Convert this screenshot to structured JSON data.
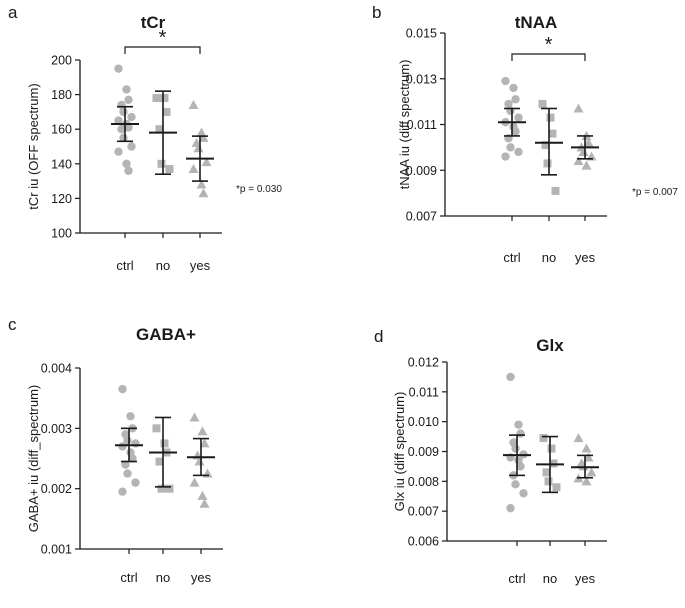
{
  "colors": {
    "ctrl": "#b4b4b4",
    "no": "#b4b4b4",
    "yes": "#b4b4b4",
    "errorbar": "#1a1a1a",
    "axis": "#1a1a1a"
  },
  "chart_data": [
    {
      "type": "scatter",
      "panel": "a",
      "title": "tCr",
      "ylabel": "tCr iu (OFF spectrum)",
      "ylim": [
        100,
        200
      ],
      "yticks": [
        "100",
        "120",
        "140",
        "160",
        "180",
        "200"
      ],
      "categories": [
        "ctrl",
        "no",
        "yes"
      ],
      "markers": [
        "circle",
        "square",
        "triangle"
      ],
      "points": [
        [
          195,
          183,
          177,
          174,
          170,
          167,
          165,
          163,
          161,
          160,
          155,
          150,
          147,
          140,
          136
        ],
        [
          178,
          178,
          170,
          160,
          140,
          137
        ],
        [
          174,
          158,
          155,
          152,
          149,
          141,
          137,
          128,
          123
        ]
      ],
      "means": [
        163,
        158,
        143
      ],
      "err_low": [
        153,
        134,
        130
      ],
      "err_high": [
        173,
        182,
        156
      ],
      "significance": {
        "from": "ctrl",
        "to": "yes",
        "label": "*"
      },
      "annotation": "*p = 0.030"
    },
    {
      "type": "scatter",
      "panel": "b",
      "title": "tNAA",
      "ylabel": "tNAA iu (diff spectrum)",
      "ylim": [
        0.007,
        0.015
      ],
      "yticks": [
        "0.007",
        "0.009",
        "0.011",
        "0.013",
        "0.015"
      ],
      "categories": [
        "ctrl",
        "no",
        "yes"
      ],
      "markers": [
        "circle",
        "square",
        "triangle"
      ],
      "points": [
        [
          0.0129,
          0.0126,
          0.0121,
          0.0119,
          0.0116,
          0.0113,
          0.0111,
          0.0109,
          0.0107,
          0.0104,
          0.01,
          0.0098,
          0.0096
        ],
        [
          0.0119,
          0.0113,
          0.0106,
          0.0101,
          0.0093,
          0.0081
        ],
        [
          0.0117,
          0.0105,
          0.0102,
          0.01,
          0.0098,
          0.0096,
          0.0094,
          0.0092
        ]
      ],
      "means": [
        0.0111,
        0.0102,
        0.01
      ],
      "err_low": [
        0.0105,
        0.0088,
        0.0095
      ],
      "err_high": [
        0.0117,
        0.0117,
        0.0105
      ],
      "significance": {
        "from": "ctrl",
        "to": "yes",
        "label": "*"
      },
      "annotation": "*p = 0.007"
    },
    {
      "type": "scatter",
      "panel": "c",
      "title": "GABA+",
      "ylabel": "GABA+ iu (diff_spectrum)",
      "ylim": [
        0.001,
        0.004
      ],
      "yticks": [
        "0.001",
        "0.002",
        "0.003",
        "0.004"
      ],
      "categories": [
        "ctrl",
        "no",
        "yes"
      ],
      "markers": [
        "circle",
        "square",
        "triangle"
      ],
      "points": [
        [
          0.00365,
          0.0032,
          0.003,
          0.0029,
          0.0028,
          0.00275,
          0.0027,
          0.0026,
          0.0025,
          0.0024,
          0.00225,
          0.0021,
          0.00195
        ],
        [
          0.003,
          0.00275,
          0.0026,
          0.00245,
          0.002,
          0.002
        ],
        [
          0.00318,
          0.00295,
          0.00275,
          0.00255,
          0.00245,
          0.00225,
          0.0021,
          0.00188,
          0.00175
        ]
      ],
      "means": [
        0.00272,
        0.0026,
        0.00252
      ],
      "err_low": [
        0.00245,
        0.00203,
        0.00222
      ],
      "err_high": [
        0.003,
        0.00318,
        0.00283
      ],
      "significance": null,
      "annotation": ""
    },
    {
      "type": "scatter",
      "panel": "d",
      "title": "Glx",
      "ylabel": "Glx iu (diff spectrum)",
      "ylim": [
        0.006,
        0.012
      ],
      "yticks": [
        "0.006",
        "0.007",
        "0.008",
        "0.009",
        "0.010",
        "0.011",
        "0.012"
      ],
      "categories": [
        "ctrl",
        "no",
        "yes"
      ],
      "markers": [
        "circle",
        "square",
        "triangle"
      ],
      "points": [
        [
          0.0115,
          0.0099,
          0.0096,
          0.0093,
          0.0091,
          0.0089,
          0.0088,
          0.0087,
          0.0085,
          0.0082,
          0.0079,
          0.0076,
          0.0071
        ],
        [
          0.00945,
          0.0091,
          0.0086,
          0.0083,
          0.008,
          0.0078
        ],
        [
          0.00945,
          0.0091,
          0.0088,
          0.0086,
          0.0085,
          0.0083,
          0.0081,
          0.008
        ]
      ],
      "means": [
        0.00888,
        0.00857,
        0.00847
      ],
      "err_low": [
        0.0082,
        0.00763,
        0.00812
      ],
      "err_high": [
        0.00955,
        0.0095,
        0.00887
      ],
      "significance": null,
      "annotation": ""
    }
  ]
}
